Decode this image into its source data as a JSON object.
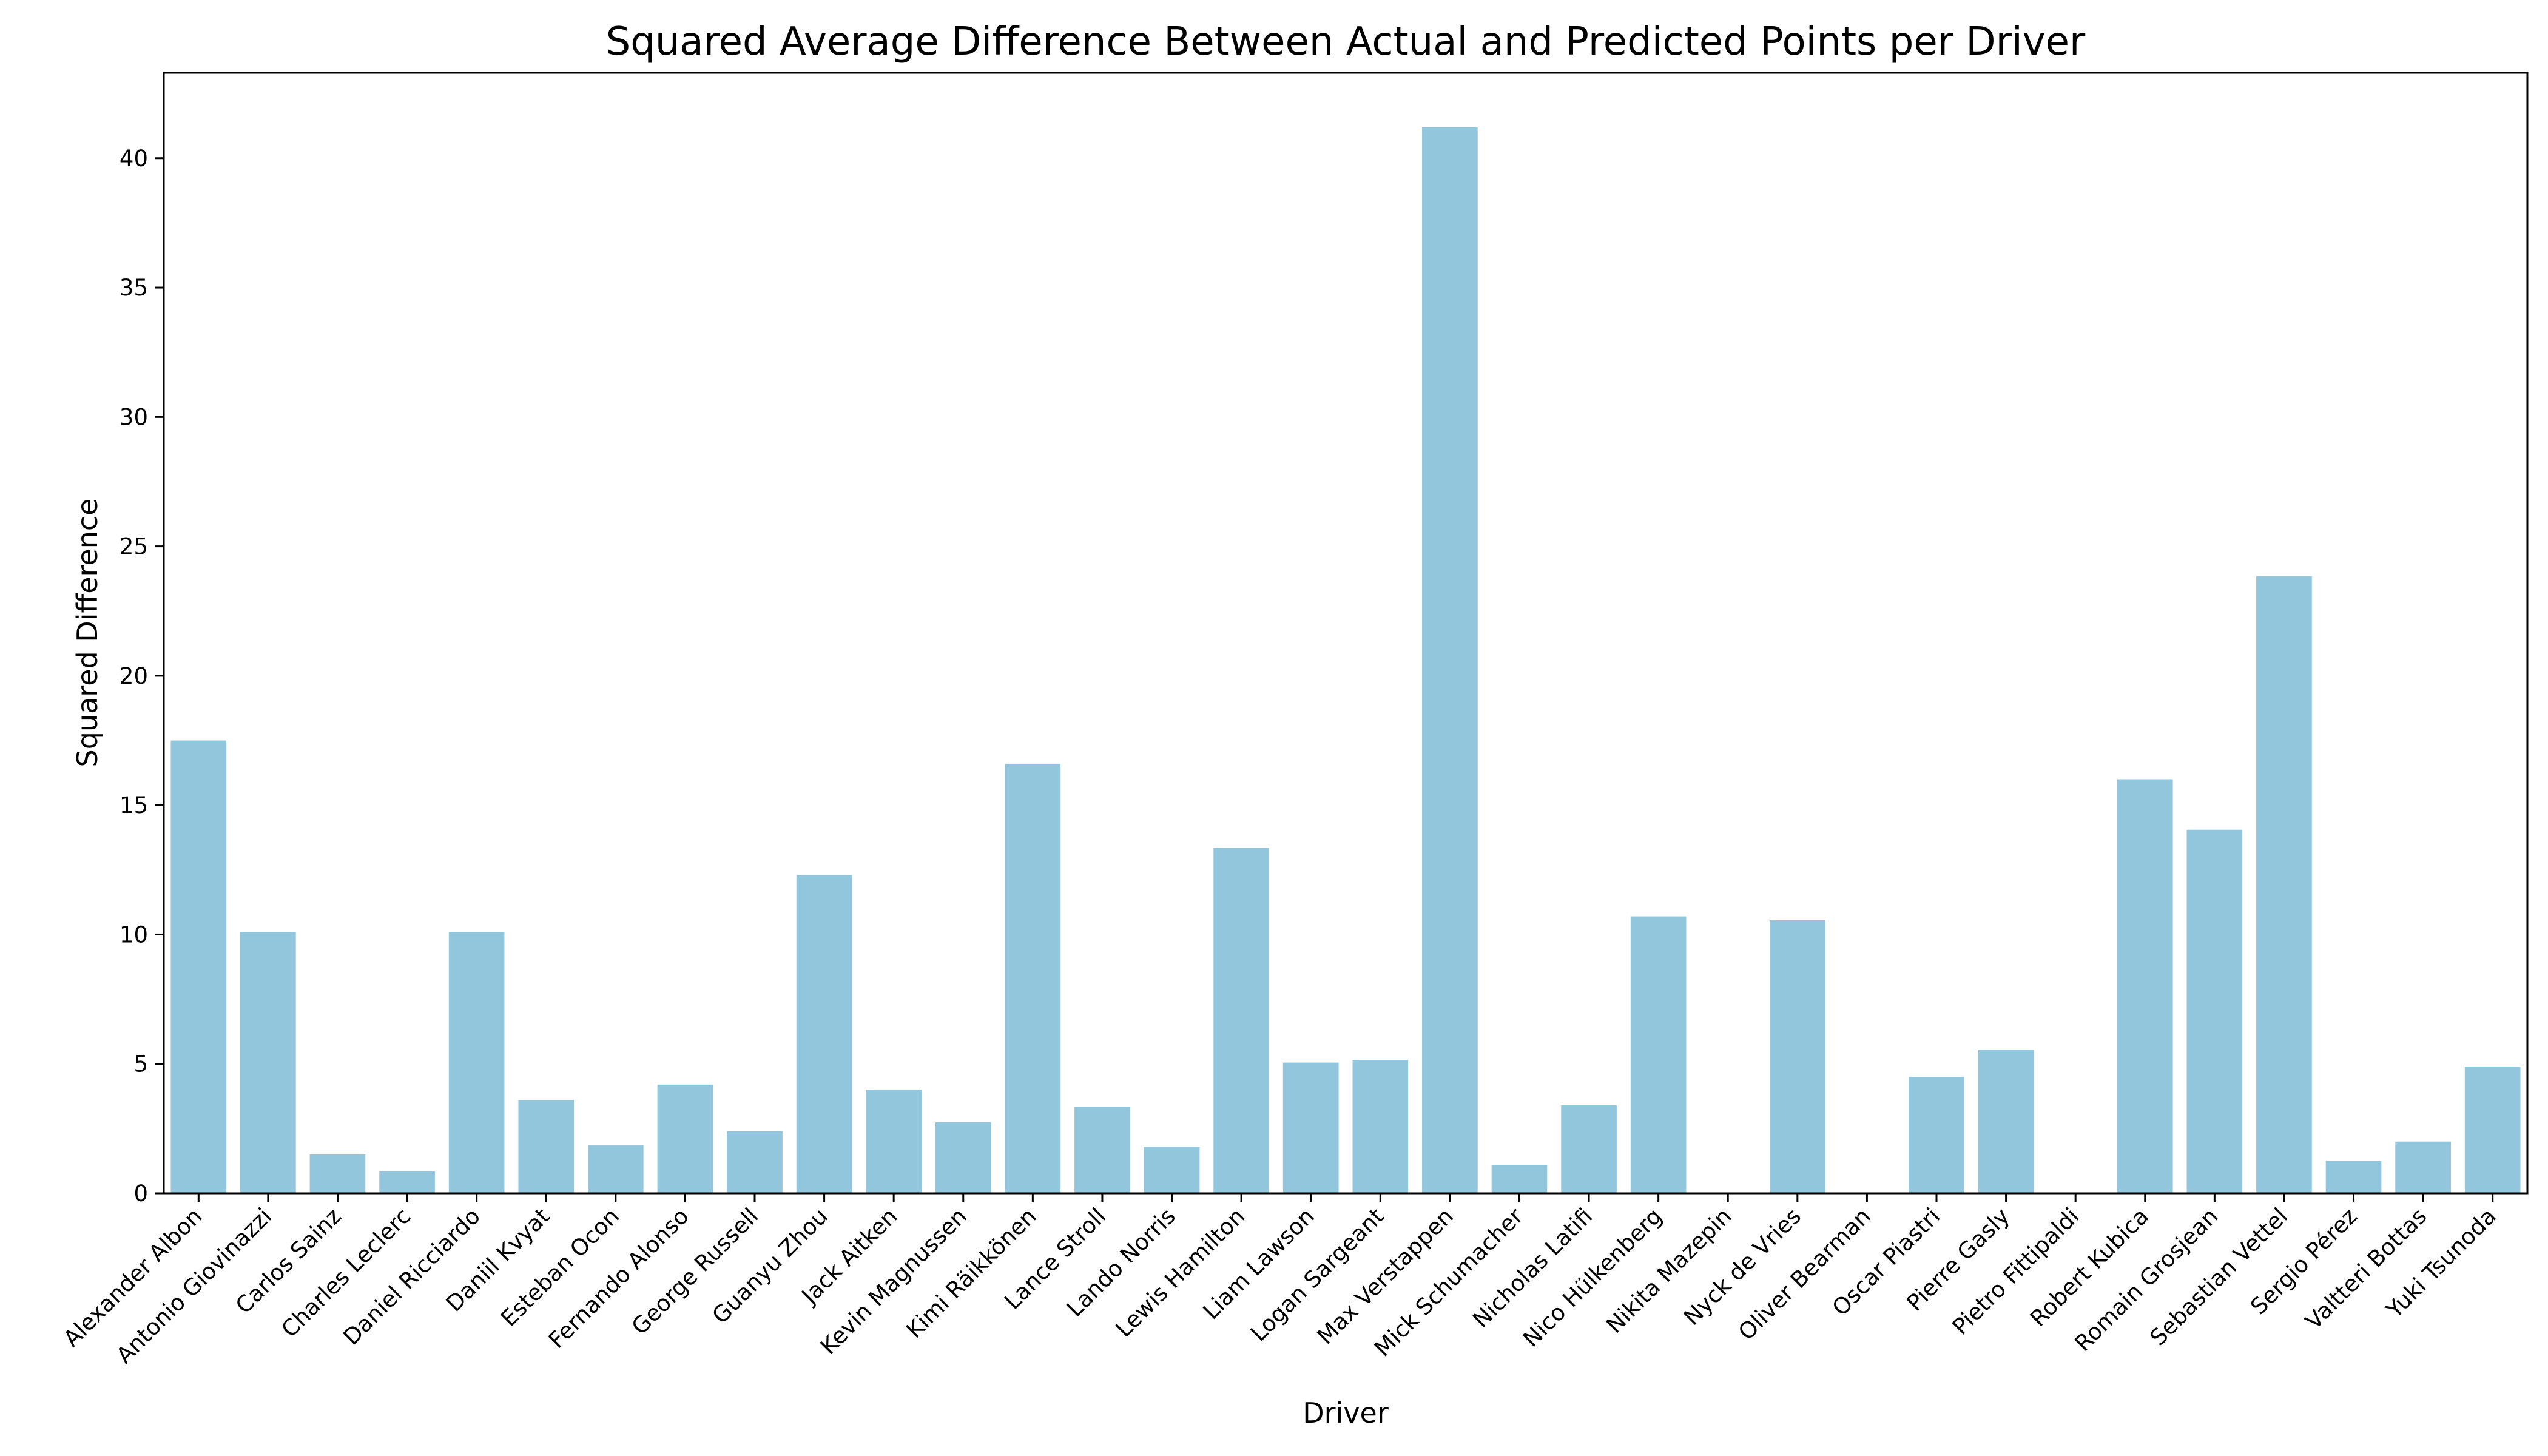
{
  "chart_data": {
    "type": "bar",
    "title": "Squared Average Difference Between Actual and Predicted Points per Driver",
    "xlabel": "Driver",
    "ylabel": "Squared Difference",
    "ylim": [
      0,
      43.3
    ],
    "yticks": [
      0,
      5,
      10,
      15,
      20,
      25,
      30,
      35,
      40
    ],
    "grid": false,
    "legend": "none",
    "bar_color": "#92c6dc",
    "categories": [
      "Alexander Albon",
      "Antonio Giovinazzi",
      "Carlos Sainz",
      "Charles Leclerc",
      "Daniel Ricciardo",
      "Daniil Kvyat",
      "Esteban Ocon",
      "Fernando Alonso",
      "George Russell",
      "Guanyu Zhou",
      "Jack Aitken",
      "Kevin Magnussen",
      "Kimi Räikkönen",
      "Lance Stroll",
      "Lando Norris",
      "Lewis Hamilton",
      "Liam Lawson",
      "Logan Sargeant",
      "Max Verstappen",
      "Mick Schumacher",
      "Nicholas Latifi",
      "Nico Hülkenberg",
      "Nikita Mazepin",
      "Nyck de Vries",
      "Oliver Bearman",
      "Oscar Piastri",
      "Pierre Gasly",
      "Pietro Fittipaldi",
      "Robert Kubica",
      "Romain Grosjean",
      "Sebastian Vettel",
      "Sergio Pérez",
      "Valtteri Bottas",
      "Yuki Tsunoda"
    ],
    "values": [
      17.5,
      10.1,
      1.5,
      0.85,
      10.1,
      3.6,
      1.85,
      4.2,
      2.4,
      12.3,
      4.0,
      2.75,
      16.6,
      3.35,
      1.8,
      13.35,
      5.05,
      5.15,
      41.2,
      1.1,
      3.4,
      10.7,
      0,
      10.55,
      0,
      4.5,
      5.55,
      0,
      16.0,
      14.05,
      23.85,
      1.25,
      2.0,
      4.9
    ]
  }
}
